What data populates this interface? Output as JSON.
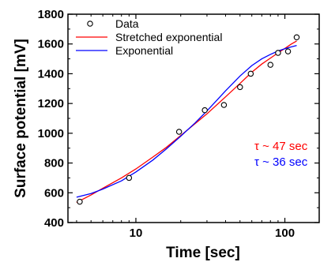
{
  "chart_data": {
    "type": "line",
    "xlabel": "Time    [sec]",
    "ylabel": "Surface potential   [mV]",
    "xscale": "log",
    "xlim": [
      3.5,
      170
    ],
    "ylim": [
      400,
      1800
    ],
    "x_tick_values": [
      10,
      100
    ],
    "x_tick_labels": [
      "10",
      "100"
    ],
    "y_ticks": [
      400,
      600,
      800,
      1000,
      1200,
      1400,
      1600,
      1800
    ],
    "legend_position": "top-left",
    "series": [
      {
        "name": "Data",
        "kind": "scatter",
        "marker": "open-circle",
        "color": "#000000",
        "x": [
          4.2,
          9,
          19.5,
          29,
          39,
          50,
          59,
          80,
          90,
          105,
          120
        ],
        "y": [
          540,
          700,
          1010,
          1155,
          1190,
          1310,
          1400,
          1460,
          1540,
          1550,
          1645
        ]
      },
      {
        "name": "Stretched exponential",
        "kind": "line",
        "color": "#ff0000",
        "x": [
          4,
          5,
          6,
          8,
          10,
          13,
          16,
          20,
          25,
          30,
          40,
          50,
          60,
          70,
          80,
          90,
          100,
          110,
          120
        ],
        "y": [
          535,
          585,
          630,
          700,
          760,
          840,
          905,
          985,
          1065,
          1130,
          1245,
          1335,
          1410,
          1465,
          1505,
          1540,
          1570,
          1598,
          1620
        ]
      },
      {
        "name": "Exponential",
        "kind": "line",
        "color": "#0000ff",
        "x": [
          4,
          5,
          6,
          8,
          10,
          13,
          16,
          20,
          25,
          30,
          40,
          50,
          60,
          70,
          80,
          90,
          100,
          110,
          120
        ],
        "y": [
          570,
          595,
          625,
          680,
          740,
          820,
          895,
          980,
          1070,
          1150,
          1285,
          1385,
          1455,
          1500,
          1530,
          1553,
          1568,
          1580,
          1590
        ]
      }
    ],
    "annotations": [
      {
        "text": "τ ~ 47 sec",
        "color": "#ff0000"
      },
      {
        "text": "τ ~ 36 sec",
        "color": "#0000ff"
      }
    ]
  }
}
